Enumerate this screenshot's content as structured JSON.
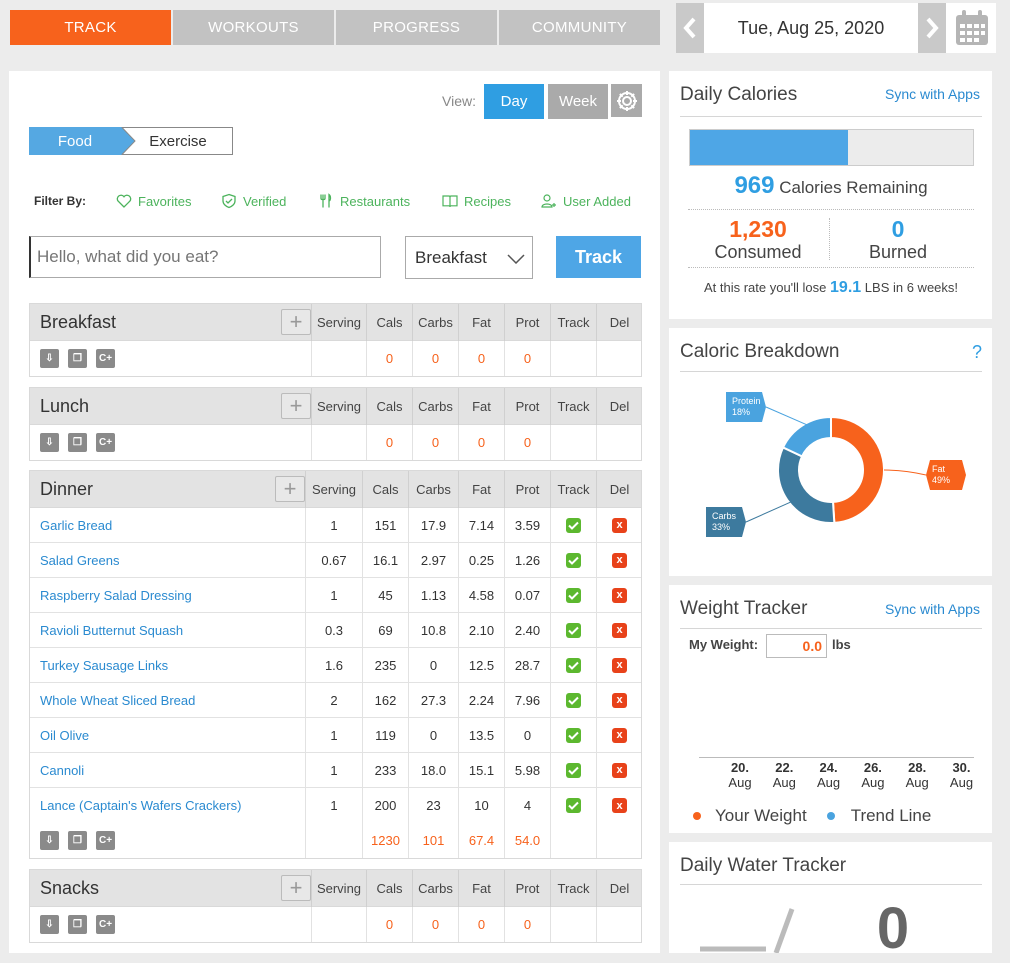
{
  "nav": {
    "tabs": [
      "TRACK",
      "WORKOUTS",
      "PROGRESS",
      "COMMUNITY"
    ],
    "date": "Tue, Aug 25, 2020"
  },
  "view": {
    "label": "View:",
    "day": "Day",
    "week": "Week"
  },
  "mode": {
    "food": "Food",
    "exercise": "Exercise"
  },
  "filter": {
    "label": "Filter By:",
    "items": [
      "Favorites",
      "Verified",
      "Restaurants",
      "Recipes",
      "User Added"
    ]
  },
  "entry": {
    "placeholder": "Hello, what did you eat?",
    "meal_select": "Breakfast",
    "track_button": "Track"
  },
  "columns": [
    "Serving",
    "Cals",
    "Carbs",
    "Fat",
    "Prot",
    "Track",
    "Del"
  ],
  "meals": {
    "breakfast": {
      "name": "Breakfast",
      "totals": {
        "cals": "0",
        "carbs": "0",
        "fat": "0",
        "prot": "0"
      }
    },
    "lunch": {
      "name": "Lunch",
      "totals": {
        "cals": "0",
        "carbs": "0",
        "fat": "0",
        "prot": "0"
      }
    },
    "dinner": {
      "name": "Dinner",
      "items": [
        {
          "name": "Garlic Bread",
          "serving": "1",
          "cals": "151",
          "carbs": "17.9",
          "fat": "7.14",
          "prot": "3.59"
        },
        {
          "name": "Salad Greens",
          "serving": "0.67",
          "cals": "16.1",
          "carbs": "2.97",
          "fat": "0.25",
          "prot": "1.26"
        },
        {
          "name": "Raspberry Salad Dressing",
          "serving": "1",
          "cals": "45",
          "carbs": "1.13",
          "fat": "4.58",
          "prot": "0.07"
        },
        {
          "name": "Ravioli Butternut Squash",
          "serving": "0.3",
          "cals": "69",
          "carbs": "10.8",
          "fat": "2.10",
          "prot": "2.40"
        },
        {
          "name": "Turkey Sausage Links",
          "serving": "1.6",
          "cals": "235",
          "carbs": "0",
          "fat": "12.5",
          "prot": "28.7"
        },
        {
          "name": "Whole Wheat Sliced Bread",
          "serving": "2",
          "cals": "162",
          "carbs": "27.3",
          "fat": "2.24",
          "prot": "7.96"
        },
        {
          "name": "Oil Olive",
          "serving": "1",
          "cals": "119",
          "carbs": "0",
          "fat": "13.5",
          "prot": "0"
        },
        {
          "name": "Cannoli",
          "serving": "1",
          "cals": "233",
          "carbs": "18.0",
          "fat": "15.1",
          "prot": "5.98"
        },
        {
          "name": "Lance (Captain's Wafers Crackers)",
          "serving": "1",
          "cals": "200",
          "carbs": "23",
          "fat": "10",
          "prot": "4"
        }
      ],
      "totals": {
        "cals": "1230",
        "carbs": "101",
        "fat": "67.4",
        "prot": "54.0"
      }
    },
    "snacks": {
      "name": "Snacks",
      "totals": {
        "cals": "0",
        "carbs": "0",
        "fat": "0",
        "prot": "0"
      }
    }
  },
  "daily_calories": {
    "title": "Daily Calories",
    "sync": "Sync with Apps",
    "progress_fraction": 0.56,
    "remaining_value": "969",
    "remaining_label": "Calories Remaining",
    "consumed_value": "1,230",
    "consumed_label": "Consumed",
    "burned_value": "0",
    "burned_label": "Burned",
    "rate_prefix": "At this rate you'll lose",
    "rate_value": "19.1",
    "rate_suffix": "LBS in 6 weeks!"
  },
  "caloric_breakdown": {
    "title": "Caloric Breakdown",
    "help": "?",
    "slices": [
      {
        "label": "Fat",
        "pct": "49%",
        "value": 49,
        "color": "#f7621c"
      },
      {
        "label": "Carbs",
        "pct": "33%",
        "value": 33,
        "color": "#3d7a9e"
      },
      {
        "label": "Protein",
        "pct": "18%",
        "value": 18,
        "color": "#4aa3df"
      }
    ]
  },
  "weight_tracker": {
    "title": "Weight Tracker",
    "sync": "Sync with Apps",
    "my_weight_label": "My Weight:",
    "weight_value": "0.0",
    "unit": "lbs",
    "x_ticks": [
      [
        "20.",
        "Aug"
      ],
      [
        "22.",
        "Aug"
      ],
      [
        "24.",
        "Aug"
      ],
      [
        "26.",
        "Aug"
      ],
      [
        "28.",
        "Aug"
      ],
      [
        "30.",
        "Aug"
      ]
    ],
    "legend": [
      "Your Weight",
      "Trend Line"
    ],
    "legend_colors": [
      "#f7621c",
      "#4aa3df"
    ]
  },
  "water": {
    "title": "Daily Water Tracker",
    "value": "0"
  }
}
